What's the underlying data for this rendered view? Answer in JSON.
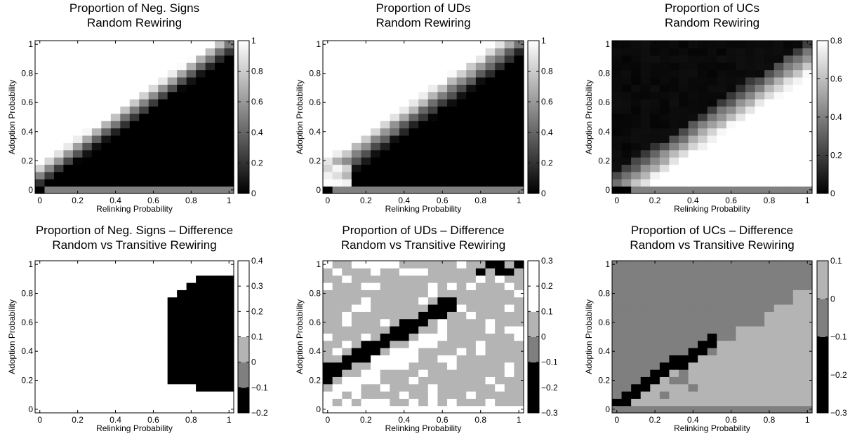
{
  "chart_data": [
    {
      "type": "heatmap",
      "title": [
        "Proportion of Neg. Signs",
        "Random Rewiring"
      ],
      "xlabel": "Relinking Probability",
      "ylabel": "Adoption Probability",
      "xticks": [
        "0",
        "0.2",
        "0.4",
        "0.6",
        "0.8",
        "1"
      ],
      "yticks": [
        "0",
        "0.2",
        "0.4",
        "0.6",
        "0.8",
        "1"
      ],
      "xlim": [
        0,
        1
      ],
      "ylim": [
        0,
        1
      ],
      "grid_size": [
        21,
        21
      ],
      "pattern": "low_right",
      "colorbar": {
        "min": 0,
        "max": 1,
        "ticks": [
          "0",
          "0.2",
          "0.4",
          "0.6",
          "0.8",
          "1"
        ],
        "levels": 64
      }
    },
    {
      "type": "heatmap",
      "title": [
        "Proportion of UDs",
        "Random Rewiring"
      ],
      "xlabel": "Relinking Probability",
      "ylabel": "Adoption Probability",
      "xticks": [
        "0",
        "0.2",
        "0.4",
        "0.6",
        "0.8",
        "1"
      ],
      "yticks": [
        "0",
        "0.2",
        "0.4",
        "0.6",
        "0.8",
        "1"
      ],
      "xlim": [
        0,
        1
      ],
      "ylim": [
        0,
        1
      ],
      "grid_size": [
        21,
        21
      ],
      "pattern": "low_right_fuzzy",
      "colorbar": {
        "min": 0,
        "max": 1,
        "ticks": [
          "0",
          "0.2",
          "0.4",
          "0.6",
          "0.8",
          "1"
        ],
        "levels": 64
      }
    },
    {
      "type": "heatmap",
      "title": [
        "Proportion of UCs",
        "Random Rewiring"
      ],
      "xlabel": "Relinking Probability",
      "ylabel": "Adoption Probability",
      "xticks": [
        "0",
        "0.2",
        "0.4",
        "0.6",
        "0.8",
        "1"
      ],
      "yticks": [
        "0",
        "0.2",
        "0.4",
        "0.6",
        "0.8",
        "1"
      ],
      "xlim": [
        0,
        1
      ],
      "ylim": [
        0,
        1
      ],
      "grid_size": [
        21,
        21
      ],
      "pattern": "uc_random",
      "colorbar": {
        "min": 0,
        "max": 0.8,
        "ticks": [
          "0",
          "0.2",
          "0.4",
          "0.6",
          "0.8"
        ],
        "levels": 64
      }
    },
    {
      "type": "heatmap",
      "title": [
        "Proportion of Neg. Signs – Difference",
        "Random vs Transitive Rewiring"
      ],
      "xlabel": "Relinking Probability",
      "ylabel": "Adoption Probability",
      "xticks": [
        "0",
        "0.2",
        "0.4",
        "0.6",
        "0.8",
        "1"
      ],
      "yticks": [
        "0",
        "0.2",
        "0.4",
        "0.6",
        "0.8",
        "1"
      ],
      "xlim": [
        0,
        1
      ],
      "ylim": [
        0,
        1
      ],
      "grid_size": [
        21,
        21
      ],
      "pattern": "diff_neg",
      "colorbar": {
        "min": -0.2,
        "max": 0.4,
        "ticks": [
          "−0.2",
          "−0.1",
          "0",
          "0.1",
          "0.2",
          "0.3",
          "0.4"
        ],
        "levels": 6,
        "level_grays": [
          "#000000",
          "#7f7f7f",
          "#b4b4b4",
          "#ffffff",
          "#ffffff",
          "#ffffff"
        ]
      }
    },
    {
      "type": "heatmap",
      "title": [
        "Proportion of UDs – Difference",
        "Random vs Transitive Rewiring"
      ],
      "xlabel": "Relinking Probability",
      "ylabel": "Adoption Probability",
      "xticks": [
        "0",
        "0.2",
        "0.4",
        "0.6",
        "0.8",
        "1"
      ],
      "yticks": [
        "0",
        "0.2",
        "0.4",
        "0.6",
        "0.8",
        "1"
      ],
      "xlim": [
        0,
        1
      ],
      "ylim": [
        0,
        1
      ],
      "grid_size": [
        21,
        21
      ],
      "pattern": "diff_ud",
      "colorbar": {
        "min": -0.3,
        "max": 0.3,
        "ticks": [
          "−0.3",
          "−0.2",
          "−0.1",
          "0",
          "0.1",
          "0.2",
          "0.3"
        ],
        "levels": 6,
        "level_grays": [
          "#000000",
          "#000000",
          "#7f7f7f",
          "#b4b4b4",
          "#ffffff",
          "#ffffff"
        ]
      }
    },
    {
      "type": "heatmap",
      "title": [
        "Proportion of UCs – Difference",
        "Random vs Transitive Rewiring"
      ],
      "xlabel": "Relinking Probability",
      "ylabel": "Adoption Probability",
      "xticks": [
        "0",
        "0.2",
        "0.4",
        "0.6",
        "0.8",
        "1"
      ],
      "yticks": [
        "0",
        "0.2",
        "0.4",
        "0.6",
        "0.8",
        "1"
      ],
      "xlim": [
        0,
        1
      ],
      "ylim": [
        0,
        1
      ],
      "grid_size": [
        21,
        21
      ],
      "pattern": "diff_uc",
      "colorbar": {
        "min": -0.3,
        "max": 0.1,
        "ticks": [
          "−0.3",
          "−0.2",
          "−0.1",
          "0",
          "0.1"
        ],
        "levels": 4,
        "level_grays": [
          "#000000",
          "#000000",
          "#7f7f7f",
          "#b4b4b4"
        ]
      }
    }
  ]
}
